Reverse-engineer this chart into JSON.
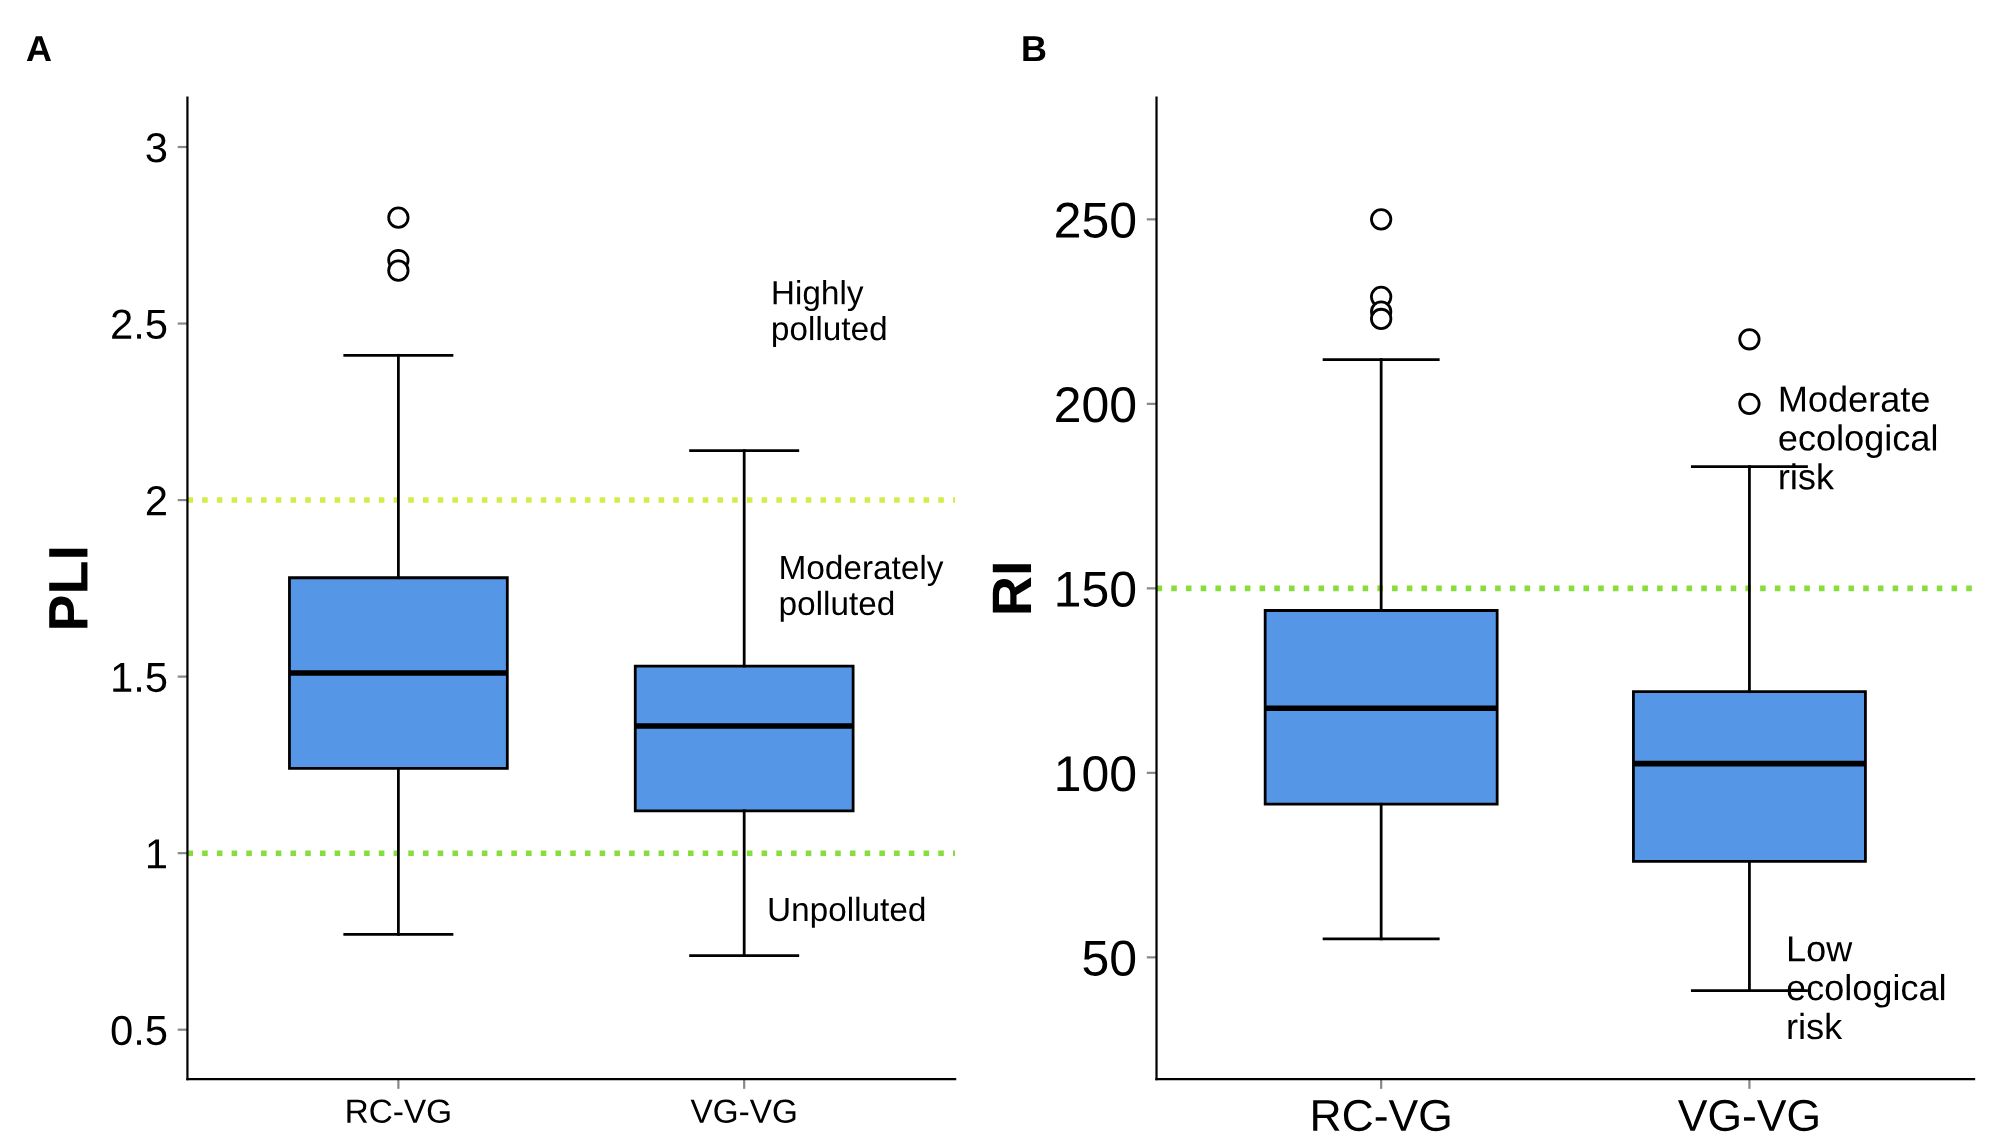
{
  "chart_data": [
    {
      "type": "box",
      "title": "A",
      "ylabel": "PLI",
      "categories": [
        "RC-VG",
        "VG-VG"
      ],
      "color": "#5596e6",
      "boxes": [
        {
          "low": 0.77,
          "q1": 1.24,
          "median": 1.51,
          "q3": 1.78,
          "high": 2.41,
          "outliers": [
            2.8,
            2.68,
            2.65
          ]
        },
        {
          "low": 0.71,
          "q1": 1.12,
          "median": 1.36,
          "q3": 1.53,
          "high": 2.14
        }
      ],
      "ylim": [
        0.36,
        3.14
      ],
      "yticks": [
        0.5,
        1,
        1.5,
        2,
        2.5,
        3
      ],
      "grid": false,
      "ref_lines": [
        {
          "axis": "y",
          "value": 2,
          "color": "#d4ec4a",
          "line_style": "dotted"
        },
        {
          "axis": "y",
          "value": 1,
          "color": "#86dd3c",
          "line_style": "dotted"
        }
      ],
      "annotations": [
        "Highly\npolluted",
        "Moderately\npolluted",
        "Unpolluted"
      ]
    },
    {
      "type": "box",
      "title": "B",
      "ylabel": "RI",
      "categories": [
        "RC-VG",
        "VG-VG"
      ],
      "color": "#5596e6",
      "boxes": [
        {
          "low": 55,
          "q1": 91.5,
          "median": 117.5,
          "q3": 144,
          "high": 212,
          "outliers": [
            250,
            229,
            225,
            223
          ]
        },
        {
          "low": 41,
          "q1": 76,
          "median": 102.5,
          "q3": 122,
          "high": 183,
          "outliers": [
            217.5,
            200
          ]
        }
      ],
      "ylim": [
        17,
        283
      ],
      "yticks": [
        50,
        100,
        150,
        200,
        250
      ],
      "grid": false,
      "ref_lines": [
        {
          "axis": "y",
          "value": 150,
          "color": "#86dd3c",
          "line_style": "dotted"
        }
      ],
      "annotations": [
        "Moderate\necological\nrisk",
        "Low\necological\nrisk"
      ]
    }
  ]
}
